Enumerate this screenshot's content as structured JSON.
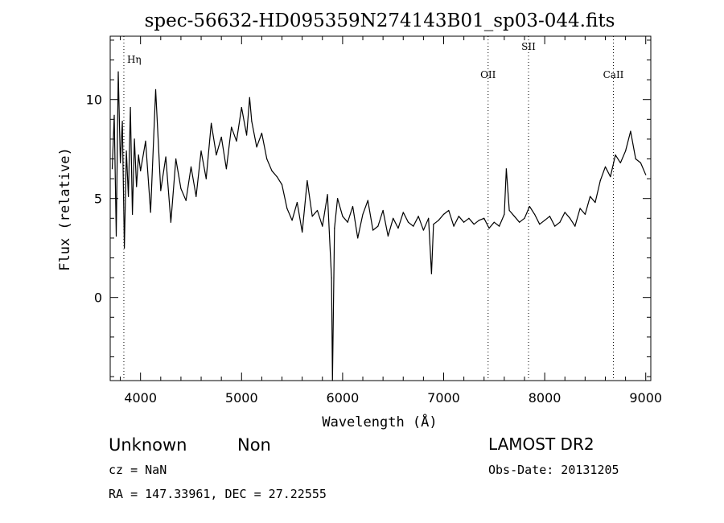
{
  "chart_data": {
    "type": "line",
    "title": "spec-56632-HD095359N274143B01_sp03-044.fits",
    "xlabel": "Wavelength (Å)",
    "ylabel": "Flux (relative)",
    "xlim": [
      3700,
      9050
    ],
    "ylim": [
      -4.2,
      13.2
    ],
    "xticks": [
      4000,
      5000,
      6000,
      7000,
      8000,
      9000
    ],
    "yticks": [
      0,
      5,
      10
    ],
    "grid": false,
    "line_color": "#000000",
    "line_markers": [
      {
        "label": "Hη",
        "wavelength": 3835
      },
      {
        "label": "OII",
        "wavelength": 7440
      },
      {
        "label": "SII",
        "wavelength": 7840
      },
      {
        "label": "CaII",
        "wavelength": 8680
      }
    ],
    "series": [
      {
        "x": [
          3720,
          3740,
          3760,
          3780,
          3800,
          3820,
          3840,
          3860,
          3880,
          3900,
          3920,
          3940,
          3960,
          3980,
          4000,
          4050,
          4100,
          4150,
          4200,
          4250,
          4300,
          4350,
          4400,
          4450,
          4500,
          4550,
          4600,
          4650,
          4700,
          4750,
          4800,
          4850,
          4900,
          4950,
          5000,
          5050,
          5080,
          5100,
          5150,
          5200,
          5250,
          5300,
          5350,
          5400,
          5450,
          5500,
          5550,
          5600,
          5650,
          5700,
          5750,
          5800,
          5850,
          5890,
          5900,
          5920,
          5950,
          6000,
          6050,
          6100,
          6150,
          6200,
          6250,
          6300,
          6350,
          6400,
          6450,
          6500,
          6550,
          6600,
          6650,
          6700,
          6750,
          6800,
          6850,
          6880,
          6900,
          6950,
          7000,
          7050,
          7100,
          7150,
          7200,
          7250,
          7300,
          7350,
          7400,
          7450,
          7500,
          7550,
          7600,
          7620,
          7650,
          7700,
          7750,
          7800,
          7850,
          7900,
          7950,
          8000,
          8050,
          8100,
          8150,
          8200,
          8250,
          8300,
          8350,
          8400,
          8450,
          8500,
          8550,
          8600,
          8650,
          8700,
          8750,
          8800,
          8850,
          8900,
          8950,
          9000
        ],
        "y": [
          6.5,
          9.2,
          3.1,
          11.4,
          6.8,
          8.9,
          2.5,
          7.4,
          5.1,
          9.6,
          4.2,
          8.0,
          5.6,
          7.2,
          6.4,
          7.9,
          4.3,
          10.5,
          5.4,
          7.1,
          3.8,
          7.0,
          5.5,
          4.9,
          6.6,
          5.1,
          7.4,
          6.0,
          8.8,
          7.2,
          8.1,
          6.5,
          8.6,
          7.9,
          9.6,
          8.2,
          10.1,
          8.9,
          7.6,
          8.3,
          7.0,
          6.4,
          6.1,
          5.7,
          4.5,
          3.9,
          4.8,
          3.3,
          5.9,
          4.1,
          4.4,
          3.6,
          5.2,
          1.0,
          -4.2,
          3.5,
          5.0,
          4.1,
          3.8,
          4.6,
          3.0,
          4.2,
          4.9,
          3.4,
          3.6,
          4.4,
          3.1,
          4.0,
          3.5,
          4.3,
          3.8,
          3.6,
          4.1,
          3.4,
          4.0,
          1.2,
          3.7,
          3.9,
          4.2,
          4.4,
          3.6,
          4.1,
          3.8,
          4.0,
          3.7,
          3.9,
          4.0,
          3.5,
          3.8,
          3.6,
          4.2,
          6.5,
          4.4,
          4.1,
          3.8,
          4.0,
          4.6,
          4.2,
          3.7,
          3.9,
          4.1,
          3.6,
          3.8,
          4.3,
          4.0,
          3.6,
          4.5,
          4.2,
          5.1,
          4.8,
          5.9,
          6.6,
          6.1,
          7.2,
          6.8,
          7.4,
          8.4,
          7.0,
          6.8,
          6.2
        ]
      }
    ]
  },
  "footer": {
    "class_label": "Unknown",
    "subclass_label": "Non",
    "cz": "cz = NaN",
    "coords": "RA = 147.33961, DEC =  27.22555",
    "survey": "LAMOST DR2",
    "obs_date": "Obs-Date: 20131205"
  }
}
